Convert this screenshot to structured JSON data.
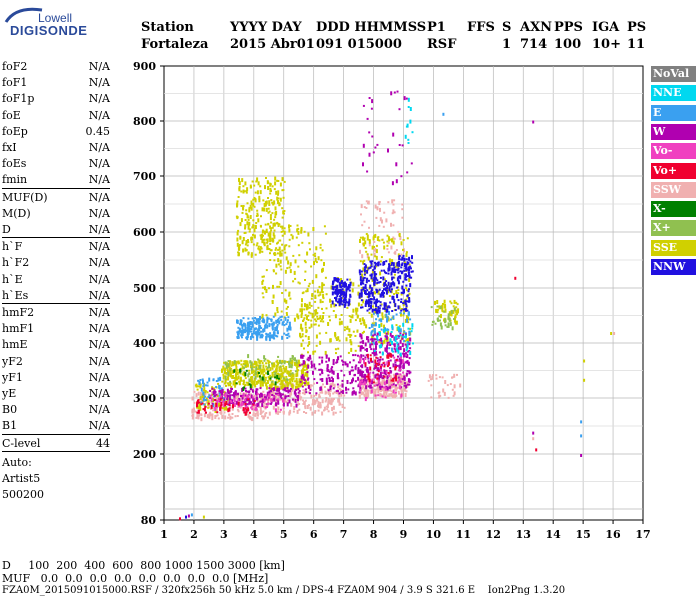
{
  "logo": {
    "top": "Lowell",
    "main": "DIGISONDE"
  },
  "header": {
    "labels": [
      "Station",
      "YYYY DAY",
      "DDD HHMMSS",
      "P1",
      "FFS",
      "S",
      "AXN",
      "PPS",
      "IGA",
      "PS"
    ],
    "values": [
      "Fortaleza",
      "2015 Abr01",
      "091 015000",
      "RSF",
      "",
      "1",
      "714",
      "100",
      "10+",
      "11"
    ]
  },
  "params": {
    "group1": [
      {
        "name": "foF2",
        "value": "N/A"
      },
      {
        "name": "foF1",
        "value": "N/A"
      },
      {
        "name": "foF1p",
        "value": "N/A"
      },
      {
        "name": "foE",
        "value": "N/A"
      },
      {
        "name": "foEp",
        "value": "0.45"
      },
      {
        "name": "fxI",
        "value": "N/A"
      },
      {
        "name": "foEs",
        "value": "N/A"
      },
      {
        "name": "fmin",
        "value": "N/A"
      }
    ],
    "group2": [
      {
        "name": "MUF(D)",
        "value": "N/A"
      },
      {
        "name": "M(D)",
        "value": "N/A"
      },
      {
        "name": "D",
        "value": "N/A"
      }
    ],
    "group3": [
      {
        "name": "h`F",
        "value": "N/A"
      },
      {
        "name": "h`F2",
        "value": "N/A"
      },
      {
        "name": "h`E",
        "value": "N/A"
      },
      {
        "name": "h`Es",
        "value": "N/A"
      }
    ],
    "group4": [
      {
        "name": "hmF2",
        "value": "N/A"
      },
      {
        "name": "hmF1",
        "value": "N/A"
      },
      {
        "name": "hmE",
        "value": "N/A"
      },
      {
        "name": "yF2",
        "value": "N/A"
      },
      {
        "name": "yF1",
        "value": "N/A"
      },
      {
        "name": "yE",
        "value": "N/A"
      },
      {
        "name": "B0",
        "value": "N/A"
      },
      {
        "name": "B1",
        "value": "N/A"
      }
    ],
    "clevel": {
      "name": "C-level",
      "value": "44"
    },
    "auto": [
      "Auto:",
      "Artist5",
      "500200"
    ]
  },
  "footer": {
    "line1": "D     100  200  400  600  800 1000 1500 3000 [km]",
    "line2": "MUF   0.0  0.0  0.0  0.0  0.0  0.0  0.0  0.0 [MHz]",
    "line3": "FZA0M_2015091015000.RSF / 320fx256h 50 kHz 5.0 km / DPS-4 FZA0M 904 / 3.9 S 321.6 E    Ion2Png 1.3.20"
  },
  "legend": [
    {
      "label": "NoVal",
      "color": "#808080"
    },
    {
      "label": "NNE",
      "color": "#00d8f0"
    },
    {
      "label": "E",
      "color": "#3aa0f0"
    },
    {
      "label": "W",
      "color": "#b000b0"
    },
    {
      "label": "Vo-",
      "color": "#f040c0"
    },
    {
      "label": "Vo+",
      "color": "#f00030"
    },
    {
      "label": "SSW",
      "color": "#f0b0b0"
    },
    {
      "label": "X-",
      "color": "#008000"
    },
    {
      "label": "X+",
      "color": "#90c050"
    },
    {
      "label": "SSE",
      "color": "#d0d000"
    },
    {
      "label": "NNW",
      "color": "#2010e0"
    }
  ],
  "chart_data": {
    "type": "scatter",
    "title": "",
    "xlabel": "",
    "ylabel": "",
    "x_ticks": [
      "1",
      "2",
      "3",
      "4",
      "5",
      "6",
      "7",
      "8",
      "9",
      "10",
      "11",
      "12",
      "13",
      "14",
      "15",
      "16",
      "17"
    ],
    "y_ticks": [
      "80",
      "200",
      "300",
      "400",
      "500",
      "600",
      "700",
      "800",
      "900"
    ],
    "xlim": [
      1,
      17
    ],
    "ylim": [
      80,
      900
    ],
    "grid": true,
    "legend_position": "right",
    "clusters": [
      {
        "series": "SSW",
        "x": [
          1.9,
          4.5
        ],
        "y": [
          265,
          315
        ],
        "n": 260
      },
      {
        "series": "SSW",
        "x": [
          4.5,
          7.0
        ],
        "y": [
          275,
          330
        ],
        "n": 220
      },
      {
        "series": "SSW",
        "x": [
          7.5,
          9.1
        ],
        "y": [
          305,
          345
        ],
        "n": 220
      },
      {
        "series": "SSW",
        "x": [
          7.5,
          9.0
        ],
        "y": [
          560,
          660
        ],
        "n": 60
      },
      {
        "series": "SSW",
        "x": [
          9.8,
          10.9
        ],
        "y": [
          300,
          345
        ],
        "n": 30
      },
      {
        "series": "SSE",
        "x": [
          2.9,
          5.8
        ],
        "y": [
          320,
          370
        ],
        "n": 420
      },
      {
        "series": "SSE",
        "x": [
          3.4,
          5.0
        ],
        "y": [
          560,
          700
        ],
        "n": 260
      },
      {
        "series": "SSE",
        "x": [
          4.2,
          6.4
        ],
        "y": [
          440,
          620
        ],
        "n": 180
      },
      {
        "series": "SSE",
        "x": [
          5.5,
          7.5
        ],
        "y": [
          380,
          520
        ],
        "n": 160
      },
      {
        "series": "SSE",
        "x": [
          7.5,
          9.2
        ],
        "y": [
          400,
          600
        ],
        "n": 220
      },
      {
        "series": "SSE",
        "x": [
          10.0,
          10.8
        ],
        "y": [
          440,
          480
        ],
        "n": 50
      },
      {
        "series": "SSE",
        "x": [
          2.0,
          3.2
        ],
        "y": [
          280,
          330
        ],
        "n": 60
      },
      {
        "series": "E",
        "x": [
          3.4,
          5.2
        ],
        "y": [
          410,
          450
        ],
        "n": 200
      },
      {
        "series": "E",
        "x": [
          7.8,
          9.2
        ],
        "y": [
          390,
          460
        ],
        "n": 60
      },
      {
        "series": "E",
        "x": [
          2.1,
          3.0
        ],
        "y": [
          290,
          340
        ],
        "n": 40
      },
      {
        "series": "W",
        "x": [
          2.5,
          5.5
        ],
        "y": [
          290,
          320
        ],
        "n": 180
      },
      {
        "series": "W",
        "x": [
          5.5,
          7.5
        ],
        "y": [
          310,
          380
        ],
        "n": 140
      },
      {
        "series": "W",
        "x": [
          7.5,
          9.2
        ],
        "y": [
          320,
          420
        ],
        "n": 260
      },
      {
        "series": "W",
        "x": [
          7.6,
          9.3
        ],
        "y": [
          690,
          880
        ],
        "n": 30
      },
      {
        "series": "Vo-",
        "x": [
          2.5,
          5.0
        ],
        "y": [
          280,
          310
        ],
        "n": 60
      },
      {
        "series": "Vo-",
        "x": [
          7.5,
          9.0
        ],
        "y": [
          300,
          380
        ],
        "n": 60
      },
      {
        "series": "Vo+",
        "x": [
          1.9,
          4.0
        ],
        "y": [
          275,
          300
        ],
        "n": 40
      },
      {
        "series": "Vo+",
        "x": [
          7.6,
          8.8
        ],
        "y": [
          330,
          390
        ],
        "n": 40
      },
      {
        "series": "NNW",
        "x": [
          6.6,
          7.2
        ],
        "y": [
          470,
          520
        ],
        "n": 110
      },
      {
        "series": "NNW",
        "x": [
          7.5,
          9.2
        ],
        "y": [
          460,
          550
        ],
        "n": 260
      },
      {
        "series": "NNW",
        "x": [
          8.8,
          9.3
        ],
        "y": [
          520,
          560
        ],
        "n": 40
      },
      {
        "series": "NNE",
        "x": [
          8.0,
          9.3
        ],
        "y": [
          380,
          440
        ],
        "n": 40
      },
      {
        "series": "NNE",
        "x": [
          9.0,
          9.3
        ],
        "y": [
          760,
          860
        ],
        "n": 10
      },
      {
        "series": "X+",
        "x": [
          3.0,
          5.5
        ],
        "y": [
          330,
          380
        ],
        "n": 60
      },
      {
        "series": "X+",
        "x": [
          9.9,
          10.7
        ],
        "y": [
          430,
          470
        ],
        "n": 30
      },
      {
        "series": "X-",
        "x": [
          3.0,
          5.0
        ],
        "y": [
          320,
          360
        ],
        "n": 20
      }
    ],
    "isolated": [
      {
        "series": "NNW",
        "x": 1.7,
        "y": 88
      },
      {
        "series": "W",
        "x": 1.8,
        "y": 90
      },
      {
        "series": "Vo+",
        "x": 1.5,
        "y": 85
      },
      {
        "series": "E",
        "x": 1.9,
        "y": 92
      },
      {
        "series": "SSE",
        "x": 2.3,
        "y": 88
      },
      {
        "series": "W",
        "x": 13.3,
        "y": 801
      },
      {
        "series": "Vo+",
        "x": 12.7,
        "y": 520
      },
      {
        "series": "SSW",
        "x": 13.3,
        "y": 230
      },
      {
        "series": "E",
        "x": 14.9,
        "y": 235
      },
      {
        "series": "SSE",
        "x": 15.0,
        "y": 370
      },
      {
        "series": "SSE",
        "x": 15.0,
        "y": 335
      },
      {
        "series": "W",
        "x": 14.9,
        "y": 200
      },
      {
        "series": "E",
        "x": 14.9,
        "y": 260
      },
      {
        "series": "SSE",
        "x": 15.9,
        "y": 420
      },
      {
        "series": "E",
        "x": 10.3,
        "y": 815
      },
      {
        "series": "Vo+",
        "x": 13.4,
        "y": 210
      },
      {
        "series": "SSW",
        "x": 16.0,
        "y": 420
      },
      {
        "series": "W",
        "x": 13.3,
        "y": 240
      }
    ]
  }
}
